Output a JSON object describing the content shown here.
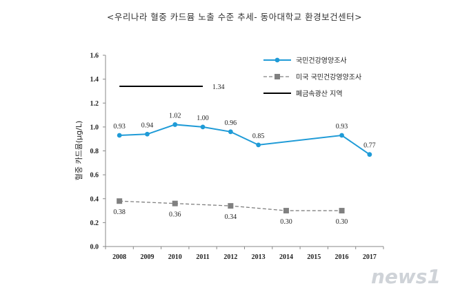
{
  "watermark": "news1",
  "chart_data": {
    "type": "line",
    "title": "<우리나라 혈중 카드뮴 노출 수준 추세- 동아대학교 환경보건센터>",
    "ylabel": "혈중 카드뮴(μg/L)",
    "xlabel": "",
    "categories": [
      "2008",
      "2009",
      "2010",
      "2011",
      "2012",
      "2013",
      "2014",
      "2015",
      "2016",
      "2017"
    ],
    "ylim": [
      0,
      1.6
    ],
    "yticks": [
      "0.0",
      "0.2",
      "0.4",
      "0.6",
      "0.8",
      "1.0",
      "1.2",
      "1.4",
      "1.6"
    ],
    "legend_position": "top-right",
    "series": [
      {
        "name": "국민건강영양조사",
        "color": "#1f9bd7",
        "style": "solid",
        "marker": "circle",
        "points": [
          {
            "x": "2008",
            "y": 0.93,
            "label": "0.93"
          },
          {
            "x": "2009",
            "y": 0.94,
            "label": "0.94"
          },
          {
            "x": "2010",
            "y": 1.02,
            "label": "1.02"
          },
          {
            "x": "2011",
            "y": 1.0,
            "label": "1.00"
          },
          {
            "x": "2012",
            "y": 0.96,
            "label": "0.96"
          },
          {
            "x": "2013",
            "y": 0.85,
            "label": "0.85"
          },
          {
            "x": "2016",
            "y": 0.93,
            "label": "0.93"
          },
          {
            "x": "2017",
            "y": 0.77,
            "label": "0.77"
          }
        ]
      },
      {
        "name": "미국 국민건강영양조사",
        "color": "#808080",
        "style": "dashed",
        "marker": "square",
        "points": [
          {
            "x": "2008",
            "y": 0.38,
            "label": "0.38"
          },
          {
            "x": "2010",
            "y": 0.36,
            "label": "0.36"
          },
          {
            "x": "2012",
            "y": 0.34,
            "label": "0.34"
          },
          {
            "x": "2014",
            "y": 0.3,
            "label": "0.30"
          },
          {
            "x": "2016",
            "y": 0.3,
            "label": "0.30"
          }
        ]
      },
      {
        "name": "폐금속광산 지역",
        "color": "#000000",
        "style": "solid",
        "marker": "none",
        "points": [
          {
            "x": "2008",
            "y": 1.34
          },
          {
            "x": "2011",
            "y": 1.34,
            "label": "1.34"
          }
        ]
      }
    ]
  }
}
